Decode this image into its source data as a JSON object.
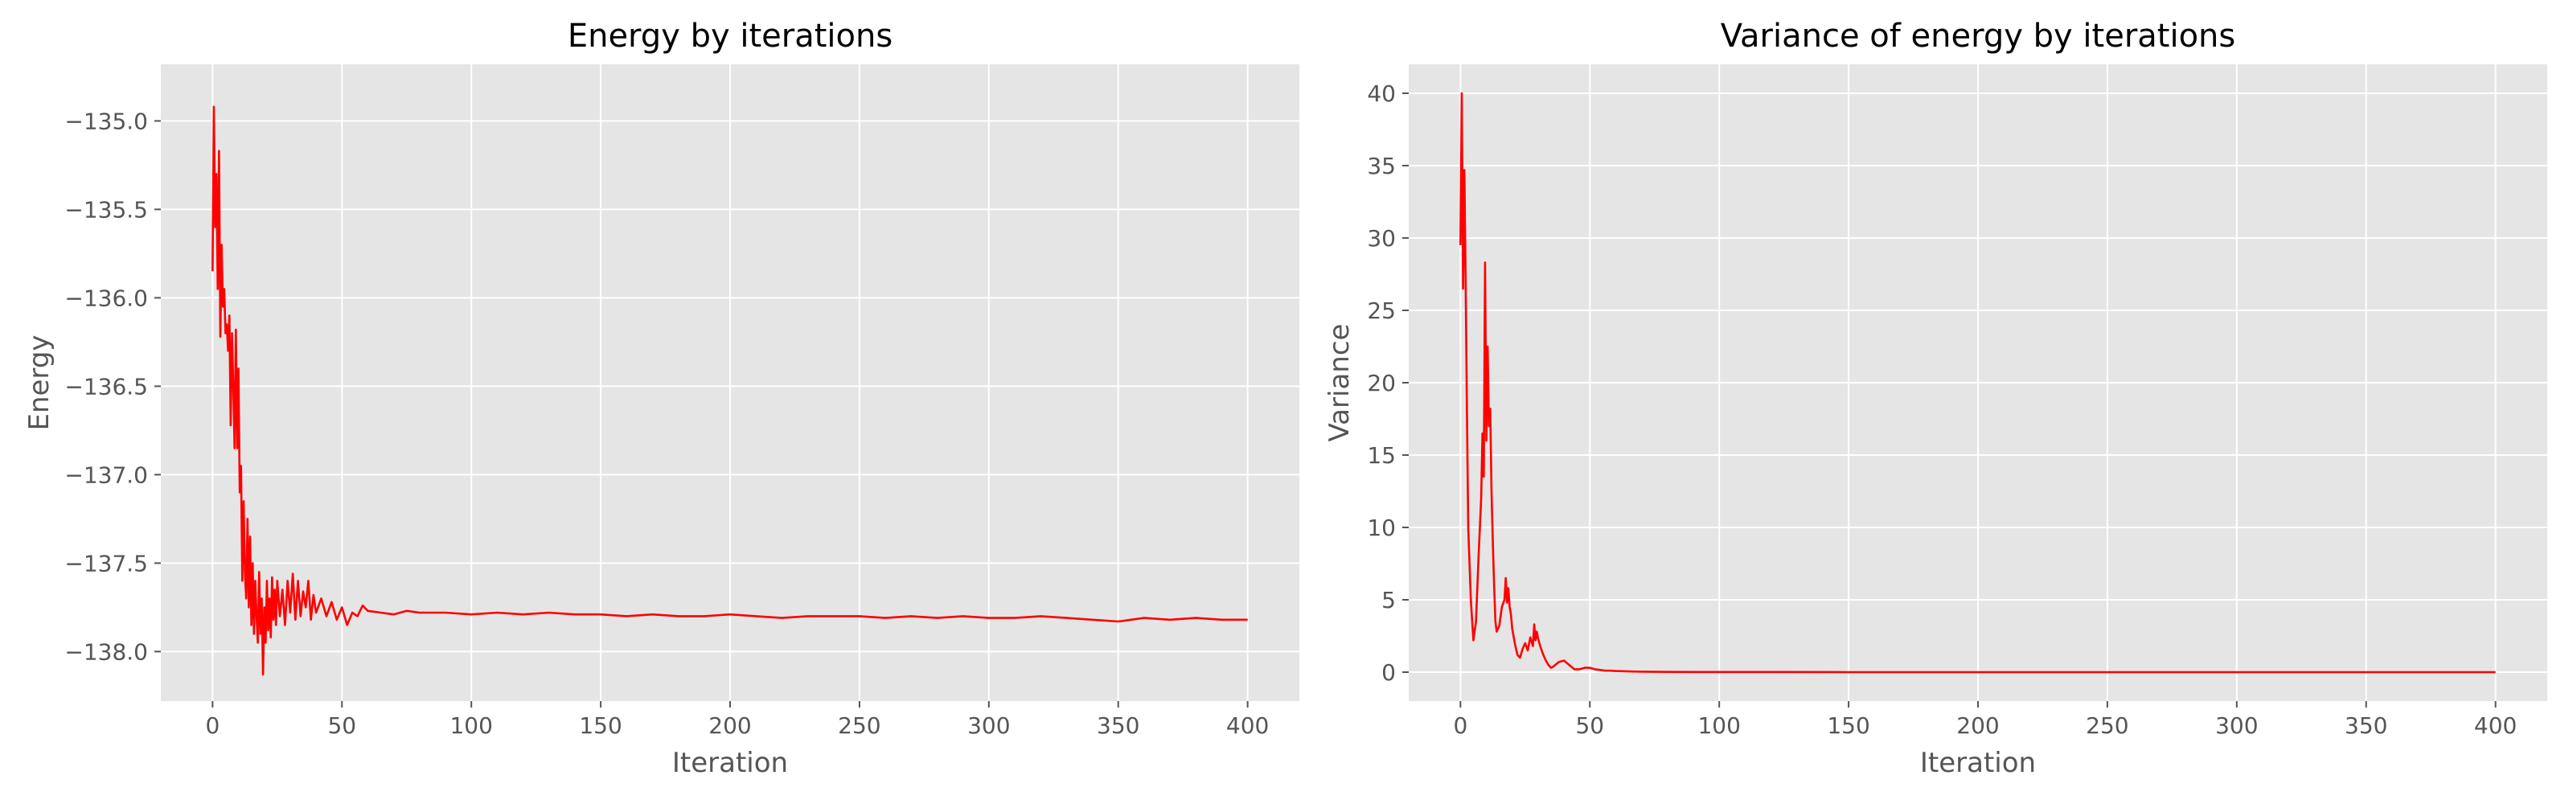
{
  "chart_data": [
    {
      "type": "line",
      "title": "Energy by iterations",
      "xlabel": "Iteration",
      "ylabel": "Energy",
      "xlim": [
        -20,
        420
      ],
      "ylim": [
        -138.28,
        -134.68
      ],
      "xticks": [
        0,
        50,
        100,
        150,
        200,
        250,
        300,
        350,
        400
      ],
      "yticks": [
        -138.0,
        -137.5,
        -137.0,
        -136.5,
        -136.0,
        -135.5,
        -135.0
      ],
      "grid": true,
      "series": [
        {
          "color": "#ff0000",
          "x": [
            0,
            0.5,
            1,
            1.5,
            2,
            2.5,
            3,
            3.5,
            4,
            4.5,
            5,
            5.5,
            6,
            6.5,
            7,
            7.5,
            8,
            8.5,
            9,
            9.5,
            10,
            10.5,
            11,
            11.5,
            12,
            12.5,
            13,
            13.5,
            14,
            14.5,
            15,
            15.5,
            16,
            16.5,
            17,
            17.5,
            18,
            18.5,
            19,
            19.5,
            20,
            20.5,
            21,
            21.5,
            22,
            22.5,
            23,
            23.5,
            24,
            24.5,
            25,
            26,
            27,
            28,
            29,
            30,
            31,
            32,
            33,
            34,
            35,
            36,
            37,
            38,
            39,
            40,
            42,
            44,
            46,
            48,
            50,
            52,
            54,
            56,
            58,
            60,
            65,
            70,
            75,
            80,
            90,
            100,
            110,
            120,
            130,
            140,
            150,
            160,
            170,
            180,
            190,
            200,
            210,
            220,
            230,
            240,
            250,
            260,
            270,
            280,
            290,
            300,
            310,
            320,
            330,
            340,
            350,
            360,
            370,
            380,
            390,
            400
          ],
          "y": [
            -135.85,
            -134.92,
            -135.6,
            -135.3,
            -135.95,
            -135.17,
            -136.22,
            -135.7,
            -136.05,
            -135.95,
            -136.2,
            -136.15,
            -136.3,
            -136.1,
            -136.72,
            -136.2,
            -136.5,
            -136.85,
            -136.18,
            -136.85,
            -136.4,
            -137.1,
            -136.95,
            -137.6,
            -137.15,
            -137.55,
            -137.7,
            -137.25,
            -137.75,
            -137.35,
            -137.85,
            -137.5,
            -137.9,
            -137.6,
            -137.8,
            -137.95,
            -137.55,
            -137.9,
            -137.7,
            -138.13,
            -137.75,
            -137.95,
            -137.6,
            -137.88,
            -137.7,
            -137.92,
            -137.58,
            -137.82,
            -137.65,
            -137.85,
            -137.6,
            -137.8,
            -137.65,
            -137.85,
            -137.6,
            -137.78,
            -137.56,
            -137.82,
            -137.6,
            -137.8,
            -137.66,
            -137.75,
            -137.6,
            -137.82,
            -137.68,
            -137.78,
            -137.7,
            -137.8,
            -137.72,
            -137.82,
            -137.75,
            -137.85,
            -137.78,
            -137.8,
            -137.74,
            -137.77,
            -137.78,
            -137.79,
            -137.77,
            -137.78,
            -137.78,
            -137.79,
            -137.78,
            -137.79,
            -137.78,
            -137.79,
            -137.79,
            -137.8,
            -137.79,
            -137.8,
            -137.8,
            -137.79,
            -137.8,
            -137.81,
            -137.8,
            -137.8,
            -137.8,
            -137.81,
            -137.8,
            -137.81,
            -137.8,
            -137.81,
            -137.81,
            -137.8,
            -137.81,
            -137.82,
            -137.83,
            -137.81,
            -137.82,
            -137.81,
            -137.82,
            -137.82
          ]
        }
      ]
    },
    {
      "type": "line",
      "title": "Variance of energy by iterations",
      "xlabel": "Iteration",
      "ylabel": "Variance",
      "xlim": [
        -20,
        420
      ],
      "ylim": [
        -2,
        42
      ],
      "xticks": [
        0,
        50,
        100,
        150,
        200,
        250,
        300,
        350,
        400
      ],
      "yticks": [
        0,
        5,
        10,
        15,
        20,
        25,
        30,
        35,
        40
      ],
      "grid": true,
      "series": [
        {
          "color": "#ff0000",
          "x": [
            0,
            0.5,
            1,
            1.5,
            2,
            2.5,
            3,
            4,
            5,
            6,
            7,
            8,
            8.5,
            9,
            9.5,
            10,
            10.5,
            11,
            11.5,
            12,
            12.5,
            13,
            13.5,
            14,
            15,
            16,
            17,
            17.5,
            18,
            18.5,
            19,
            19.5,
            20,
            20.5,
            21,
            22,
            23,
            24,
            25,
            26,
            27,
            28,
            28.5,
            29,
            29.5,
            30,
            31,
            32,
            33,
            34,
            35,
            36,
            38,
            40,
            42,
            44,
            46,
            48,
            50,
            52,
            54,
            56,
            58,
            60,
            65,
            70,
            80,
            90,
            100,
            120,
            150,
            200,
            250,
            300,
            350,
            400
          ],
          "y": [
            29.5,
            40.0,
            26.5,
            34.7,
            27.0,
            18.0,
            10.0,
            5.0,
            2.2,
            3.5,
            8.0,
            12.0,
            16.5,
            13.5,
            28.3,
            16.0,
            22.5,
            17.0,
            18.2,
            12.5,
            9.0,
            6.0,
            3.5,
            2.8,
            3.2,
            4.5,
            5.0,
            6.5,
            4.8,
            5.8,
            4.5,
            4.0,
            3.0,
            2.5,
            2.0,
            1.2,
            1.0,
            1.6,
            2.0,
            1.5,
            2.4,
            1.8,
            3.3,
            2.2,
            2.8,
            2.3,
            1.7,
            1.2,
            0.8,
            0.5,
            0.3,
            0.4,
            0.7,
            0.8,
            0.5,
            0.2,
            0.2,
            0.3,
            0.3,
            0.2,
            0.15,
            0.1,
            0.1,
            0.08,
            0.05,
            0.03,
            0.02,
            0.01,
            0.01,
            0.01,
            0.0,
            0.0,
            0.0,
            0.0,
            0.0,
            0.0
          ]
        }
      ]
    }
  ]
}
